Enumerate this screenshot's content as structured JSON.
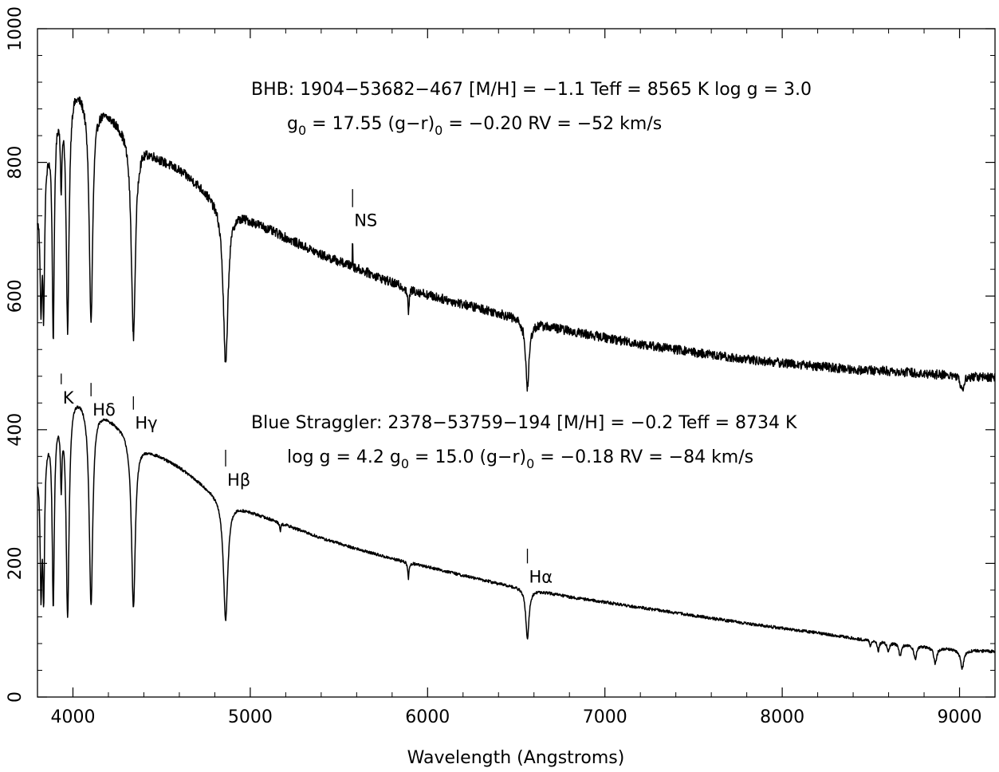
{
  "chart_data": {
    "type": "line",
    "xlabel": "Wavelength (Angstroms)",
    "ylabel": "",
    "xlim": [
      3800,
      9200
    ],
    "ylim": [
      0,
      1000
    ],
    "x_ticks": [
      4000,
      5000,
      6000,
      7000,
      8000,
      9000
    ],
    "y_ticks": [
      0,
      200,
      400,
      600,
      800,
      1000
    ],
    "grid": false,
    "annotations": {
      "bhb_line1": "BHB: 1904−53682−467 [M/H] = −1.1 Teff = 8565 K log g = 3.0",
      "bhb_line2": {
        "before": "g",
        "sub1": "0",
        "mid": " = 17.55 (g−r)",
        "sub2": "0",
        "after": " = −0.20 RV  = −52 km/s"
      },
      "bs_line1": "Blue Straggler: 2378−53759−194 [M/H] = −0.2 Teff = 8734 K",
      "bs_line2": {
        "before": "log g = 4.2 g",
        "sub1": "0",
        "mid": " = 15.0 (g−r)",
        "sub2": "0",
        "after": " = −0.18 RV  = −84 km/s"
      }
    },
    "line_labels": [
      {
        "text": "K",
        "wavelength": 3934,
        "tick_y": [
          484,
          468
        ]
      },
      {
        "text": "Hδ",
        "wavelength": 4102,
        "tick_y": [
          470,
          450
        ]
      },
      {
        "text": "Hγ",
        "wavelength": 4341,
        "tick_y": [
          450,
          430
        ]
      },
      {
        "text": "Hβ",
        "wavelength": 4861,
        "tick_y": [
          370,
          345
        ]
      },
      {
        "text": "Hα",
        "wavelength": 6563,
        "tick_y": [
          222,
          200
        ]
      },
      {
        "text": "NS",
        "wavelength": 5577,
        "tick_y": [
          760,
          733
        ]
      }
    ],
    "series": [
      {
        "continuum": [
          [
            3800,
            730
          ],
          [
            3850,
            820
          ],
          [
            3900,
            880
          ],
          [
            3950,
            915
          ],
          [
            4000,
            920
          ],
          [
            4050,
            910
          ],
          [
            4100,
            895
          ],
          [
            4200,
            875
          ],
          [
            4300,
            850
          ],
          [
            4400,
            825
          ],
          [
            4500,
            805
          ],
          [
            4600,
            790
          ],
          [
            4700,
            770
          ],
          [
            4800,
            745
          ],
          [
            4900,
            730
          ],
          [
            5000,
            715
          ],
          [
            5200,
            688
          ],
          [
            5400,
            662
          ],
          [
            5600,
            642
          ],
          [
            5800,
            620
          ],
          [
            6000,
            602
          ],
          [
            6200,
            588
          ],
          [
            6400,
            575
          ],
          [
            6600,
            560
          ],
          [
            6800,
            548
          ],
          [
            7000,
            538
          ],
          [
            7200,
            528
          ],
          [
            7400,
            520
          ],
          [
            7600,
            512
          ],
          [
            7800,
            505
          ],
          [
            8000,
            500
          ],
          [
            8200,
            495
          ],
          [
            8400,
            490
          ],
          [
            8600,
            488
          ],
          [
            8800,
            484
          ],
          [
            9000,
            481
          ],
          [
            9200,
            478
          ]
        ],
        "absorption": [
          {
            "w": 3820,
            "depth": 170,
            "width": 6
          },
          {
            "w": 3835,
            "depth": 200,
            "width": 6
          },
          {
            "w": 3889,
            "depth": 320,
            "width": 7
          },
          {
            "w": 3934,
            "depth": 120,
            "width": 5
          },
          {
            "w": 3970,
            "depth": 360,
            "width": 10
          },
          {
            "w": 4102,
            "depth": 330,
            "width": 12
          },
          {
            "w": 4341,
            "depth": 300,
            "width": 14
          },
          {
            "w": 4861,
            "depth": 240,
            "width": 16
          },
          {
            "w": 5892,
            "depth": 35,
            "width": 5
          },
          {
            "w": 6563,
            "depth": 100,
            "width": 12
          },
          {
            "w": 9015,
            "depth": 25,
            "width": 10
          }
        ],
        "emission": [
          {
            "w": 5577,
            "height": 45,
            "width": 2
          }
        ],
        "noise": 7
      },
      {
        "continuum": [
          [
            3800,
            340
          ],
          [
            3850,
            390
          ],
          [
            3900,
            420
          ],
          [
            3950,
            440
          ],
          [
            4000,
            455
          ],
          [
            4050,
            450
          ],
          [
            4100,
            440
          ],
          [
            4200,
            420
          ],
          [
            4300,
            400
          ],
          [
            4400,
            375
          ],
          [
            4500,
            360
          ],
          [
            4600,
            345
          ],
          [
            4700,
            325
          ],
          [
            4800,
            305
          ],
          [
            4900,
            290
          ],
          [
            5000,
            278
          ],
          [
            5200,
            258
          ],
          [
            5400,
            238
          ],
          [
            5600,
            222
          ],
          [
            5800,
            207
          ],
          [
            6000,
            195
          ],
          [
            6200,
            182
          ],
          [
            6400,
            170
          ],
          [
            6600,
            160
          ],
          [
            6800,
            150
          ],
          [
            7000,
            142
          ],
          [
            7200,
            134
          ],
          [
            7400,
            126
          ],
          [
            7600,
            118
          ],
          [
            7800,
            110
          ],
          [
            8000,
            103
          ],
          [
            8200,
            96
          ],
          [
            8400,
            88
          ],
          [
            8600,
            82
          ],
          [
            8800,
            76
          ],
          [
            9000,
            71
          ],
          [
            9200,
            68
          ]
        ],
        "absorption": [
          {
            "w": 3820,
            "depth": 190,
            "width": 6
          },
          {
            "w": 3835,
            "depth": 210,
            "width": 6
          },
          {
            "w": 3889,
            "depth": 270,
            "width": 7
          },
          {
            "w": 3934,
            "depth": 100,
            "width": 5
          },
          {
            "w": 3970,
            "depth": 320,
            "width": 10
          },
          {
            "w": 4102,
            "depth": 300,
            "width": 12
          },
          {
            "w": 4341,
            "depth": 255,
            "width": 13
          },
          {
            "w": 4861,
            "depth": 180,
            "width": 15
          },
          {
            "w": 5170,
            "depth": 12,
            "width": 4
          },
          {
            "w": 5892,
            "depth": 25,
            "width": 4
          },
          {
            "w": 6563,
            "depth": 75,
            "width": 11
          },
          {
            "w": 8498,
            "depth": 10,
            "width": 5
          },
          {
            "w": 8542,
            "depth": 14,
            "width": 6
          },
          {
            "w": 8598,
            "depth": 15,
            "width": 7
          },
          {
            "w": 8665,
            "depth": 18,
            "width": 8
          },
          {
            "w": 8750,
            "depth": 20,
            "width": 9
          },
          {
            "w": 8863,
            "depth": 24,
            "width": 10
          },
          {
            "w": 9015,
            "depth": 28,
            "width": 11
          }
        ],
        "emission": [],
        "noise": 2.2
      }
    ]
  }
}
